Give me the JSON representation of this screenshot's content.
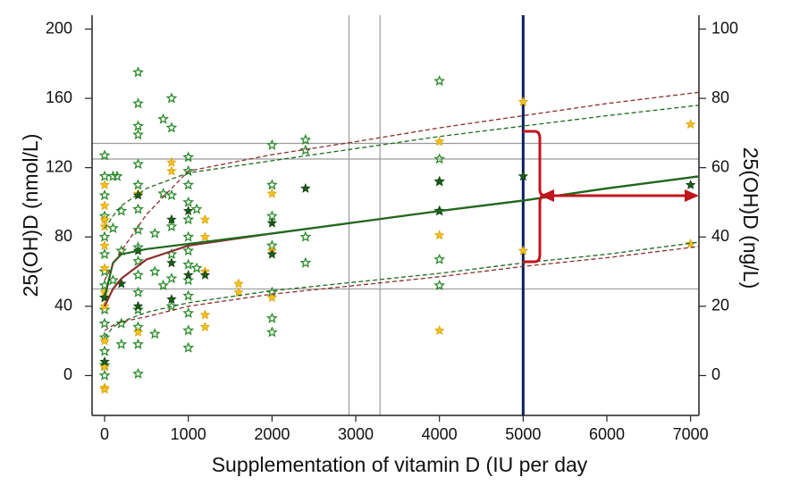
{
  "chart_data": {
    "type": "scatter",
    "xlabel": "Supplementation of vitamin D (IU per day",
    "ylabel": "25(OH)D (nmol/L)",
    "y2label": "25(OH)D (ng/L)",
    "xlim": [
      -150,
      7100
    ],
    "ylim": [
      -23,
      208
    ],
    "y2lim": [
      -11.5,
      104
    ],
    "xticks": [
      0,
      1000,
      2000,
      3000,
      4000,
      5000,
      6000,
      7000
    ],
    "yticks": [
      0,
      40,
      80,
      120,
      160,
      200
    ],
    "y2ticks": [
      0,
      20,
      40,
      60,
      80,
      100
    ],
    "hlines": {
      "values": [
        50,
        125,
        134
      ],
      "color": "#9a9a9a"
    },
    "vlines": {
      "values": [
        2920,
        3290,
        5000
      ],
      "colors": [
        "#9a9a9a",
        "#9a9a9a",
        "#0b1f5e"
      ]
    },
    "series": [
      {
        "type": "scatter",
        "marker": "outline",
        "color": "#2a8a2a",
        "x": [
          0,
          0,
          0,
          0,
          0,
          0,
          0,
          0,
          0,
          0,
          0,
          0,
          0,
          0,
          0,
          100,
          100,
          100,
          150,
          200,
          200,
          200,
          200,
          400,
          400,
          400,
          400,
          400,
          400,
          400,
          400,
          400,
          400,
          400,
          400,
          400,
          400,
          400,
          400,
          600,
          600,
          600,
          700,
          700,
          700,
          800,
          800,
          800,
          800,
          800,
          800,
          800,
          1000,
          1000,
          1000,
          1000,
          1000,
          1000,
          1000,
          1000,
          1000,
          1000,
          1000,
          1000,
          1000,
          1100,
          1100,
          2000,
          2000,
          2000,
          2000,
          2000,
          2000,
          2000,
          2400,
          2400,
          2400,
          2400,
          4000,
          4000,
          4000,
          4000,
          4000,
          4000
        ],
        "y": [
          127,
          115,
          104,
          92,
          80,
          70,
          60,
          52,
          45,
          38,
          30,
          22,
          14,
          6,
          0,
          115,
          85,
          55,
          115,
          95,
          72,
          30,
          18,
          175,
          157,
          144,
          139,
          122,
          110,
          96,
          84,
          74,
          66,
          58,
          48,
          38,
          28,
          18,
          1,
          82,
          60,
          24,
          148,
          105,
          52,
          160,
          143,
          104,
          86,
          70,
          56,
          40,
          126,
          118,
          110,
          100,
          90,
          80,
          72,
          64,
          55,
          46,
          36,
          26,
          16,
          96,
          62,
          133,
          110,
          92,
          75,
          48,
          33,
          25,
          136,
          130,
          80,
          65,
          170,
          125,
          112,
          95,
          67,
          52
        ]
      },
      {
        "type": "scatter",
        "marker": "filled",
        "color": "#f5c223",
        "x": [
          0,
          0,
          0,
          0,
          0,
          0,
          0,
          0,
          0,
          0,
          0,
          0,
          400,
          400,
          800,
          800,
          1200,
          1200,
          1200,
          1200,
          1200,
          1600,
          1600,
          2000,
          2000,
          2000,
          4000,
          4000,
          4000,
          5000,
          5000,
          7000,
          7000
        ],
        "y": [
          110,
          98,
          90,
          86,
          75,
          62,
          48,
          40,
          20,
          5,
          -7,
          -8,
          105,
          25,
          123,
          118,
          90,
          80,
          60,
          35,
          28,
          53,
          48,
          105,
          72,
          45,
          135,
          81,
          26,
          158,
          72,
          145,
          76
        ]
      },
      {
        "type": "scatter",
        "marker": "filled",
        "color": "#1c5c1c",
        "x": [
          0,
          0,
          200,
          400,
          400,
          400,
          800,
          800,
          800,
          1000,
          1000,
          1200,
          2000,
          2000,
          2400,
          4000,
          4000,
          5000,
          7000
        ],
        "y": [
          45,
          8,
          53,
          104,
          72,
          40,
          90,
          65,
          44,
          95,
          58,
          58,
          88,
          70,
          108,
          112,
          95,
          115,
          110
        ]
      },
      {
        "type": "line",
        "dash": false,
        "color": "#8b2e2e",
        "x": [
          0,
          100,
          200,
          500,
          1000,
          2000,
          3000,
          4000,
          5000,
          6000,
          7100
        ],
        "y": [
          40,
          50,
          56,
          67,
          75,
          82,
          88.5,
          95,
          101,
          108,
          115
        ]
      },
      {
        "type": "line",
        "dash": false,
        "color": "#1e6b1e",
        "x": [
          0,
          100,
          200,
          500,
          1000,
          2000,
          3000,
          4000,
          5000,
          6000,
          7100
        ],
        "y": [
          45,
          65,
          70,
          73,
          76,
          82,
          88.5,
          95,
          101,
          108,
          115
        ]
      },
      {
        "type": "line",
        "dash": true,
        "color": "#8b2e2e",
        "x": [
          0,
          100,
          200,
          500,
          1000,
          2000,
          3000,
          4000,
          5000,
          6000,
          7100
        ],
        "y": [
          55,
          64,
          72,
          93,
          118,
          127.5,
          135,
          143,
          150,
          157,
          163.5
        ]
      },
      {
        "type": "line",
        "dash": true,
        "color": "#1e6b1e",
        "x": [
          0,
          100,
          200,
          500,
          1000,
          2000,
          3000,
          4000,
          5000,
          6000,
          7100
        ],
        "y": [
          85,
          92,
          98,
          108,
          117,
          124,
          131,
          138,
          144,
          150,
          156
        ]
      },
      {
        "type": "line",
        "dash": true,
        "color": "#8b2e2e",
        "x": [
          0,
          100,
          200,
          500,
          1000,
          2000,
          3000,
          4000,
          5000,
          6000,
          7100
        ],
        "y": [
          26,
          29,
          31,
          34,
          40,
          47,
          52,
          57,
          63,
          68,
          74.5
        ]
      },
      {
        "type": "line",
        "dash": true,
        "color": "#1e6b1e",
        "x": [
          0,
          100,
          200,
          500,
          1000,
          2000,
          3000,
          4000,
          5000,
          6000,
          7100
        ],
        "y": [
          22,
          28,
          31,
          36.5,
          42,
          49,
          54,
          59,
          65,
          70,
          77
        ]
      }
    ]
  }
}
